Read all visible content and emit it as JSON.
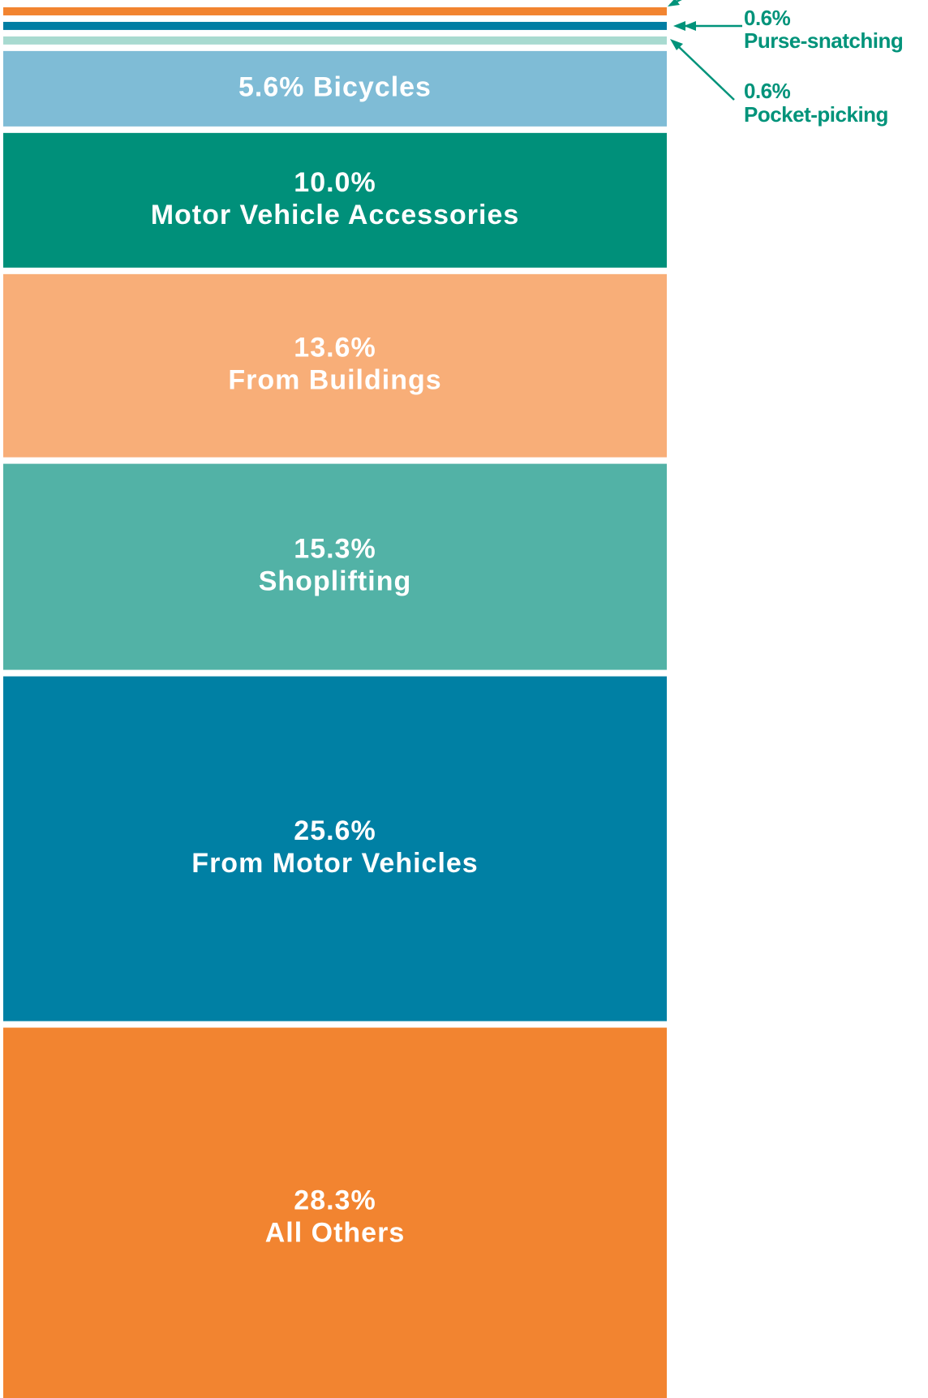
{
  "chart_data": {
    "type": "stacked-column",
    "categories": [
      null,
      "Purse-snatching",
      "Pocket-picking",
      "Bicycles",
      "Motor Vehicle Accessories",
      "From Buildings",
      "Shoplifting",
      "From Motor Vehicles",
      "All Others"
    ],
    "values": [
      0.6,
      0.6,
      0.6,
      5.6,
      10.0,
      13.6,
      15.3,
      25.6,
      28.3
    ],
    "value_labels": [
      null,
      "0.6%",
      "0.6%",
      "5.6%",
      "10.0%",
      "13.6%",
      "15.3%",
      "25.6%",
      "28.3%"
    ],
    "colors": [
      "#f28430",
      "#007da3",
      "#a8dad0",
      "#7fbcd6",
      "#00907a",
      "#f8ae78",
      "#52b2a6",
      "#0080a4",
      "#f28430"
    ]
  }
}
